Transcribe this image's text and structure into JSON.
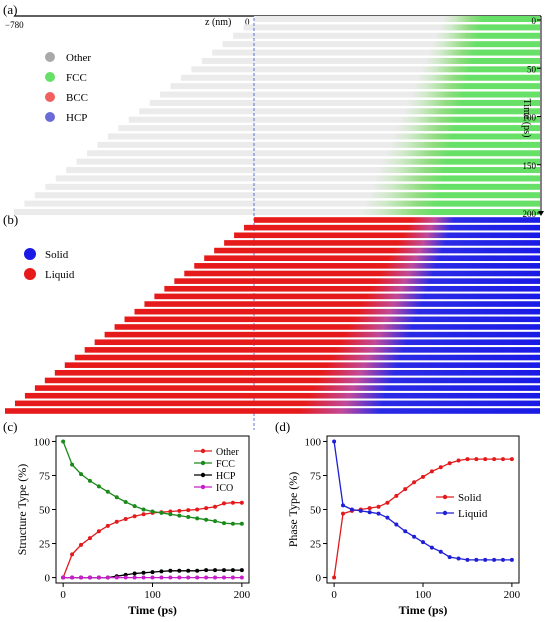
{
  "panels": {
    "a": {
      "label": "(a)",
      "z_label": "z (nm)",
      "z_left": "−780",
      "z_zero": "0",
      "time_label": "Time (ps)",
      "time_ticks": [
        "0",
        "50",
        "100",
        "150",
        "200"
      ],
      "legend": [
        {
          "label": "Other",
          "color": "#a9a9a9"
        },
        {
          "label": "FCC",
          "color": "#66e066"
        },
        {
          "label": "BCC",
          "color": "#f06060"
        },
        {
          "label": "HCP",
          "color": "#6b6bd8"
        }
      ]
    },
    "b": {
      "label": "(b)",
      "legend": [
        {
          "label": "Solid",
          "color": "#1a1ae6"
        },
        {
          "label": "Liquid",
          "color": "#e61a1a"
        }
      ]
    },
    "c": {
      "label": "(c)"
    },
    "d": {
      "label": "(d)"
    }
  },
  "chart_data": [
    {
      "type": "line",
      "panel": "c",
      "xlabel": "Time (ps)",
      "ylabel": "Structure Type (%)",
      "xlim": [
        -8,
        208
      ],
      "ylim": [
        -4,
        104
      ],
      "xticks": [
        0,
        100,
        200
      ],
      "yticks": [
        0,
        25,
        50,
        75,
        100
      ],
      "legend_position": "top-right",
      "x": [
        0,
        10,
        20,
        30,
        40,
        50,
        60,
        70,
        80,
        90,
        100,
        110,
        120,
        130,
        140,
        150,
        160,
        170,
        180,
        190,
        200
      ],
      "series": [
        {
          "name": "Other",
          "color": "#e31a1c",
          "values": [
            0,
            17,
            24,
            29,
            34,
            38,
            41,
            43,
            45,
            46.5,
            47.5,
            48,
            48.5,
            49,
            49.5,
            50,
            51,
            52,
            54.5,
            55,
            55
          ]
        },
        {
          "name": "FCC",
          "color": "#1a8a1a",
          "values": [
            100,
            83,
            76,
            71,
            67,
            63,
            59,
            55.5,
            52.5,
            50,
            48.5,
            47.5,
            46.5,
            45.5,
            44.5,
            43.5,
            42.5,
            41.5,
            40,
            39.5,
            39.5
          ]
        },
        {
          "name": "HCP",
          "color": "#000000",
          "values": [
            0,
            0,
            0,
            0,
            0,
            0,
            1,
            2,
            3,
            3.5,
            4,
            4.5,
            5,
            5,
            5,
            5,
            5.5,
            5.5,
            5.5,
            5.5,
            5.5
          ]
        },
        {
          "name": "ICO",
          "color": "#c71ec7",
          "values": [
            0,
            0,
            0,
            0,
            0,
            0,
            0,
            0,
            0,
            0,
            0,
            0,
            0,
            0,
            0,
            0,
            0,
            0,
            0,
            0,
            0
          ]
        }
      ]
    },
    {
      "type": "line",
      "panel": "d",
      "xlabel": "Time (ps)",
      "ylabel": "Phase Type (%)",
      "xlim": [
        -8,
        208
      ],
      "ylim": [
        -4,
        104
      ],
      "xticks": [
        0,
        100,
        200
      ],
      "yticks": [
        0,
        25,
        50,
        75,
        100
      ],
      "legend_position": "center-right",
      "x": [
        0,
        10,
        20,
        30,
        40,
        50,
        60,
        70,
        80,
        90,
        100,
        110,
        120,
        130,
        140,
        150,
        160,
        170,
        180,
        190,
        200
      ],
      "series": [
        {
          "name": "Solid",
          "color": "#e31a1c",
          "values": [
            0,
            47,
            49,
            50,
            51,
            52,
            55,
            60,
            65,
            70,
            74,
            78,
            81,
            84,
            86,
            87,
            87,
            87,
            87,
            87,
            87
          ]
        },
        {
          "name": "Liquid",
          "color": "#1f1fd6",
          "values": [
            100,
            53,
            50,
            49,
            48,
            47,
            44,
            39,
            34,
            30,
            26,
            22,
            19,
            15,
            14,
            13,
            13,
            13,
            13,
            13,
            13
          ]
        }
      ]
    }
  ]
}
